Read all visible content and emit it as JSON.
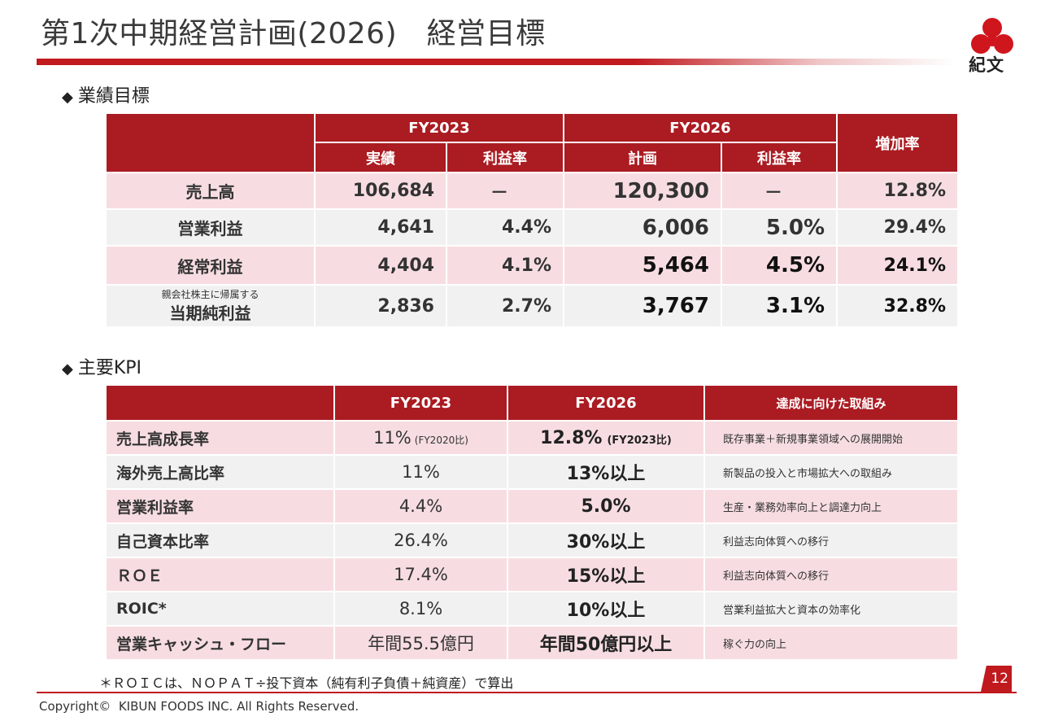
{
  "header": {
    "title": "第1次中期経営計画(2026)　経営目標",
    "logo_text": "紀文"
  },
  "performance": {
    "section_label": "業績目標",
    "groups": [
      "FY2023",
      "FY2026",
      "増加率"
    ],
    "subheads": [
      "実績",
      "利益率",
      "計画",
      "利益率"
    ],
    "rows": [
      {
        "label": "売上高",
        "sublabel": "",
        "fy23": "106,684",
        "fy23_margin": "－",
        "fy26": "120,300",
        "fy26_margin": "－",
        "growth": "12.8%"
      },
      {
        "label": "営業利益",
        "sublabel": "",
        "fy23": "4,641",
        "fy23_margin": "4.4%",
        "fy26": "6,006",
        "fy26_margin": "5.0%",
        "growth": "29.4%"
      },
      {
        "label": "経常利益",
        "sublabel": "",
        "fy23": "4,404",
        "fy23_margin": "4.1%",
        "fy26": "5,464",
        "fy26_margin": "4.5%",
        "growth": "24.1%"
      },
      {
        "label": "当期純利益",
        "sublabel": "親会社株主に帰属する",
        "fy23": "2,836",
        "fy23_margin": "2.7%",
        "fy26": "3,767",
        "fy26_margin": "3.1%",
        "growth": "32.8%"
      }
    ]
  },
  "kpi": {
    "section_label": "主要KPI",
    "headers": [
      "",
      "FY2023",
      "FY2026",
      "達成に向けた取組み"
    ],
    "rows": [
      {
        "label": "売上高成長率",
        "fy23": "11%",
        "fy23_note": "(FY2020比)",
        "fy26": "12.8%",
        "fy26_note": "(FY2023比)",
        "action": "既存事業＋新規事業領域への展開開始"
      },
      {
        "label": "海外売上高比率",
        "fy23": "11%",
        "fy23_note": "",
        "fy26": "13%以上",
        "fy26_note": "",
        "action": "新製品の投入と市場拡大への取組み"
      },
      {
        "label": "営業利益率",
        "fy23": "4.4%",
        "fy23_note": "",
        "fy26": "5.0%",
        "fy26_note": "",
        "action": "生産・業務効率向上と調達力向上"
      },
      {
        "label": "自己資本比率",
        "fy23": "26.4%",
        "fy23_note": "",
        "fy26": "30%以上",
        "fy26_note": "",
        "action": "利益志向体質への移行"
      },
      {
        "label": "ＲＯＥ",
        "fy23": "17.4%",
        "fy23_note": "",
        "fy26": "15%以上",
        "fy26_note": "",
        "action": "利益志向体質への移行"
      },
      {
        "label": "ROIC*",
        "fy23": "8.1%",
        "fy23_note": "",
        "fy26": "10%以上",
        "fy26_note": "",
        "action": "営業利益拡大と資本の効率化"
      },
      {
        "label": "営業キャッシュ・フロー",
        "fy23": "年間55.5億円",
        "fy23_note": "",
        "fy26": "年間50億円以上",
        "fy26_note": "",
        "action": "稼ぐ力の向上"
      }
    ]
  },
  "footer": {
    "footnote": "＊ＲＯＩＣは、ＮＯＰＡＴ÷投下資本（純有利子負債＋純資産）で算出",
    "page": "12",
    "copyright": "Copyright©  KIBUN FOODS INC. All Rights Reserved."
  },
  "colors": {
    "accent": "#ab1b22",
    "pink_row": "#f7dde1",
    "gray_row": "#f1f1f1"
  }
}
